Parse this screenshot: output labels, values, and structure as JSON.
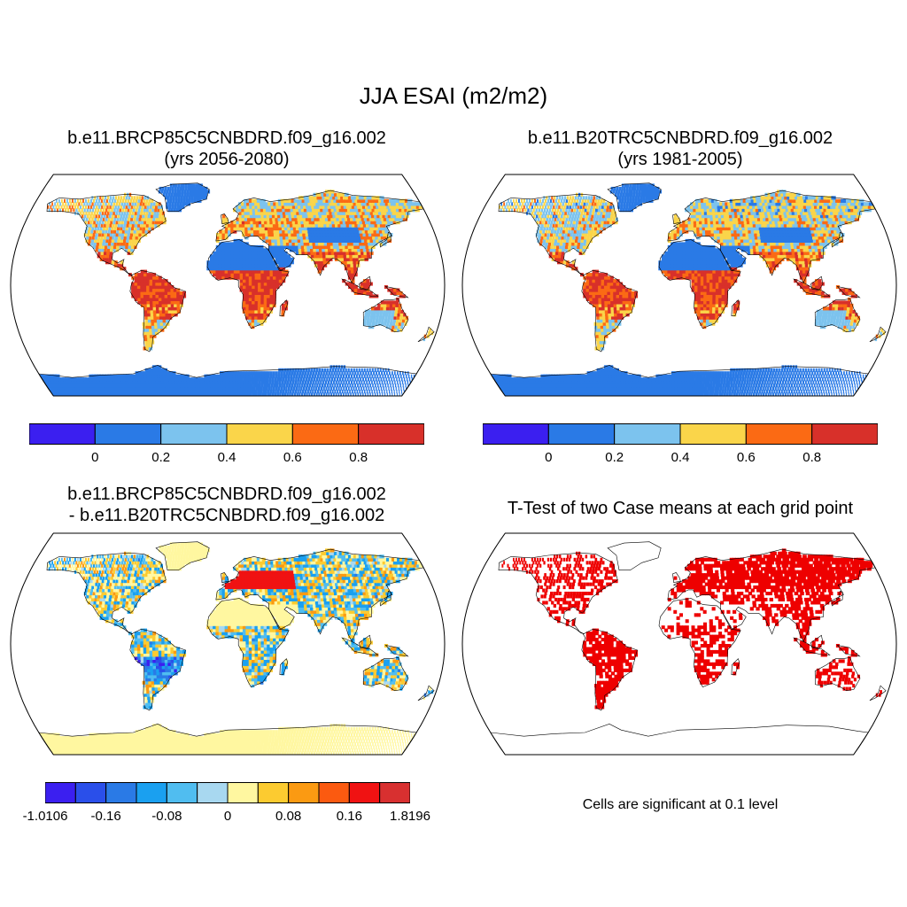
{
  "main_title": "JJA ESAI (m2/m2)",
  "panels": [
    {
      "title_line1": "b.e11.BRCP85C5CNBDRD.f09_g16.002",
      "title_line2": "(yrs 2056-2080)"
    },
    {
      "title_line1": "b.e11.B20TRC5CNBDRD.f09_g16.002",
      "title_line2": "(yrs 1981-2005)"
    },
    {
      "title_line1": "b.e11.BRCP85C5CNBDRD.f09_g16.002",
      "title_line2": "- b.e11.B20TRC5CNBDRD.f09_g16.002"
    },
    {
      "title_line1": "T-Test of two Case means at each grid point"
    }
  ],
  "colorbars": {
    "absolute": {
      "colors": [
        "#3b1ff0",
        "#2a7ae6",
        "#7cc3ee",
        "#fad54a",
        "#fb6a14",
        "#d8302a"
      ],
      "labels": [
        "0",
        "0.2",
        "0.4",
        "0.6",
        "0.8"
      ]
    },
    "difference": {
      "colors": [
        "#3b1ff0",
        "#2a4fea",
        "#2a7ae6",
        "#1aa0f0",
        "#50bdf0",
        "#a8d8f0",
        "#fff7a0",
        "#fccb30",
        "#fb9a12",
        "#fb5a10",
        "#f01212",
        "#d83030"
      ],
      "labels": [
        "-1.0106",
        "-0.16",
        "-0.08",
        "0",
        "0.08",
        "0.16",
        "1.8196"
      ]
    }
  },
  "note": "Cells are significant at 0.1 level",
  "colors": {
    "land_outline": "#000000",
    "ocean": "#ffffff",
    "significant": "#ee0000"
  }
}
